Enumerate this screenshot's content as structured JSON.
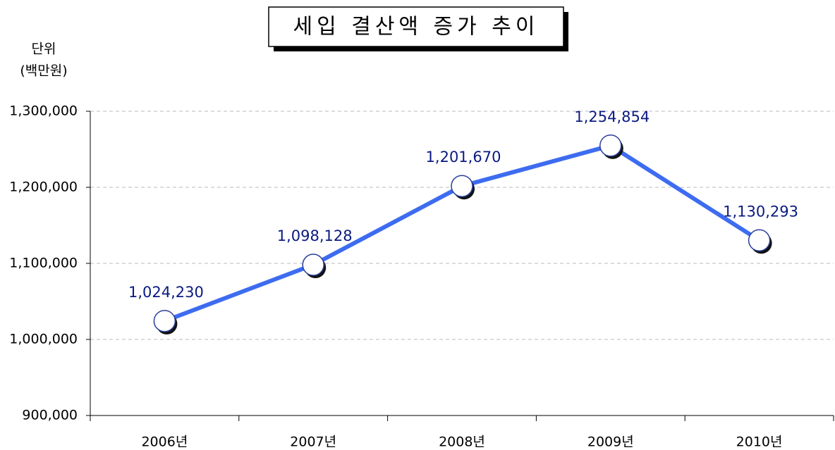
{
  "chart_data": {
    "type": "line",
    "title": "세입 결산액 증가 추이",
    "unit_label": [
      "단위",
      "(백만원)"
    ],
    "categories": [
      "2006년",
      "2007년",
      "2008년",
      "2009년",
      "2010년"
    ],
    "series": [
      {
        "name": "세입 결산액",
        "color": "#3d6cf0",
        "values": [
          1024230,
          1098128,
          1201670,
          1254854,
          1130293
        ],
        "value_labels": [
          "1,024,230",
          "1,098,128",
          "1,201,670",
          "1,254,854",
          "1,130,293"
        ]
      }
    ],
    "ylim": [
      900000,
      1300000
    ],
    "yticks": [
      {
        "value": 900000,
        "label": "900,000"
      },
      {
        "value": 1000000,
        "label": "1,000,000"
      },
      {
        "value": 1100000,
        "label": "1,100,000"
      },
      {
        "value": 1200000,
        "label": "1,200,000"
      },
      {
        "value": 1300000,
        "label": "1,300,000"
      }
    ],
    "grid": true,
    "legend": false
  }
}
